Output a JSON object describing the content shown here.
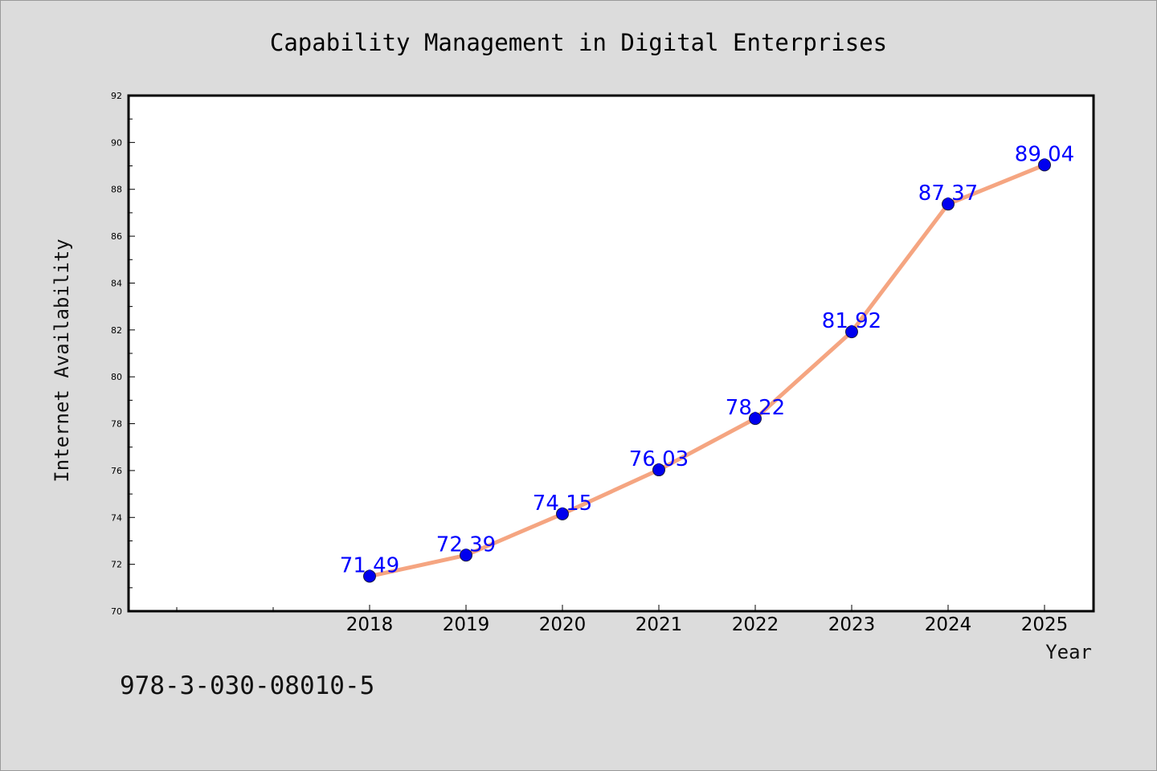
{
  "chart_data": {
    "type": "line",
    "title": "Capability Management in Digital Enterprises",
    "xlabel": "Year",
    "ylabel": "Internet Availability",
    "categories": [
      "2018",
      "2019",
      "2020",
      "2021",
      "2022",
      "2023",
      "2024",
      "2025"
    ],
    "series": [
      {
        "values": [
          71.49,
          72.39,
          74.15,
          76.03,
          78.22,
          81.92,
          87.37,
          89.04
        ],
        "labels": [
          "71.49",
          "72.39",
          "74.15",
          "76.03",
          "78.22",
          "81.92",
          "87.37",
          "89.04"
        ]
      }
    ],
    "ylim": [
      70,
      92
    ],
    "yticks": [
      "70",
      "72",
      "74",
      "76",
      "78",
      "80",
      "82",
      "84",
      "86",
      "88",
      "90",
      "92"
    ],
    "grid": false,
    "legend": "none",
    "line_color": "#f4a07a",
    "marker_color": "#0000ee",
    "label_color": "#0000ff"
  },
  "footer": {
    "isbn": "978-3-030-08010-5"
  }
}
